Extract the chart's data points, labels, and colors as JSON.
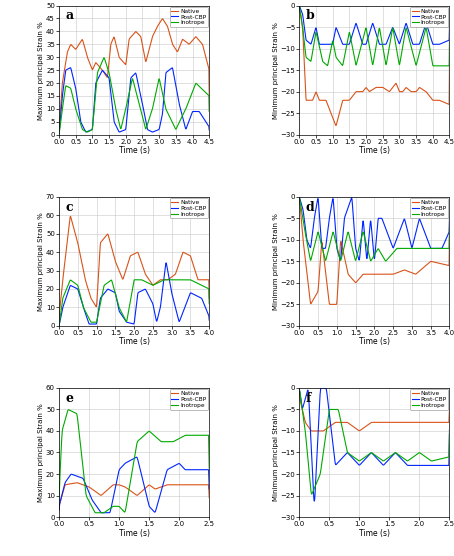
{
  "bg_color": "#ffffff",
  "grid_color": "#c8c8c8",
  "native_color": "#d95319",
  "postcbp_color": "#0026ff",
  "inotrope_color": "#00aa00",
  "legend_labels": [
    "Native",
    "Post-CBP",
    "Inotrope"
  ],
  "panels": [
    {
      "label": "a",
      "ylabel": "Maximum principal Strain %",
      "xlabel": "Time (s)",
      "xlim": [
        0,
        4.5
      ],
      "ylim": [
        0,
        50
      ],
      "yticks": [
        0,
        5,
        10,
        15,
        20,
        25,
        30,
        35,
        40,
        45,
        50
      ],
      "xticks": [
        0,
        0.5,
        1,
        1.5,
        2,
        2.5,
        3,
        3.5,
        4,
        4.5
      ]
    },
    {
      "label": "b",
      "ylabel": "Minimum principal Strain %",
      "xlabel": "Time (s)",
      "xlim": [
        0,
        4.5
      ],
      "ylim": [
        -30,
        0
      ],
      "yticks": [
        -30,
        -25,
        -20,
        -15,
        -10,
        -5,
        0
      ],
      "xticks": [
        0,
        0.5,
        1,
        1.5,
        2,
        2.5,
        3,
        3.5,
        4,
        4.5
      ]
    },
    {
      "label": "c",
      "ylabel": "Maximum principal Strain %",
      "xlabel": "Time (s)",
      "xlim": [
        0,
        4
      ],
      "ylim": [
        0,
        70
      ],
      "yticks": [
        0,
        10,
        20,
        30,
        40,
        50,
        60,
        70
      ],
      "xticks": [
        0,
        0.5,
        1,
        1.5,
        2,
        2.5,
        3,
        3.5,
        4
      ]
    },
    {
      "label": "d",
      "ylabel": "Minimum principal Strain %",
      "xlabel": "Time (s)",
      "xlim": [
        0,
        4
      ],
      "ylim": [
        -30,
        0
      ],
      "yticks": [
        -30,
        -25,
        -20,
        -15,
        -10,
        -5,
        0
      ],
      "xticks": [
        0,
        0.5,
        1,
        1.5,
        2,
        2.5,
        3,
        3.5,
        4
      ]
    },
    {
      "label": "e",
      "ylabel": "Maximum principal Strain %",
      "xlabel": "Time (s)",
      "xlim": [
        0,
        2.5
      ],
      "ylim": [
        0,
        60
      ],
      "yticks": [
        0,
        10,
        20,
        30,
        40,
        50,
        60
      ],
      "xticks": [
        0,
        0.5,
        1,
        1.5,
        2,
        2.5
      ]
    },
    {
      "label": "f",
      "ylabel": "Minimum principal Strain %",
      "xlabel": "Time (s)",
      "xlim": [
        0,
        2.5
      ],
      "ylim": [
        -30,
        0
      ],
      "yticks": [
        -30,
        -25,
        -20,
        -15,
        -10,
        -5,
        0
      ],
      "xticks": [
        0,
        0.5,
        1,
        1.5,
        2,
        2.5
      ]
    }
  ]
}
